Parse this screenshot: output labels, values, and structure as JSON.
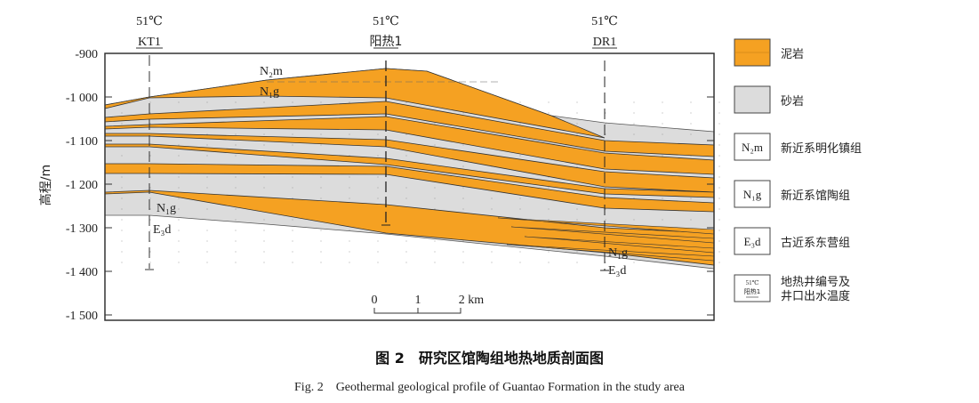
{
  "y_axis": {
    "label": "高程/m",
    "ticks": [
      "-900",
      "-1 000",
      "-1 100",
      "-1 200",
      "-1 300",
      "-1 400",
      "-1 500"
    ]
  },
  "wells": [
    {
      "name": "KT1",
      "temperature": "51℃"
    },
    {
      "name": "阳热1",
      "temperature": "51℃"
    },
    {
      "name": "DR1",
      "temperature": "51℃"
    }
  ],
  "formation_labels": {
    "n2m": "N₂m",
    "n1g_top": "N₁g",
    "n1g_left": "N₁g",
    "e3d_left": "E₃d",
    "n1g_right": "N₁g",
    "e3d_right": "E₃d"
  },
  "scale_bar": {
    "ticks": [
      "0",
      "1",
      "2 km"
    ]
  },
  "legend": [
    {
      "key": "mudstone",
      "label": "泥岩",
      "color": "#f5a122"
    },
    {
      "key": "sandstone",
      "label": "砂岩",
      "color": "#dcdcdc"
    },
    {
      "key": "n2m",
      "symbol": "N₂m",
      "label": "新近系明化镇组"
    },
    {
      "key": "n1g",
      "symbol": "N₁g",
      "label": "新近系馆陶组"
    },
    {
      "key": "e3d",
      "symbol": "E₃d",
      "label": "古近系东营组"
    },
    {
      "key": "well",
      "symbol_temp": "51℃",
      "symbol_name": "阳热1",
      "label_line1": "地热井编号及",
      "label_line2": "井口出水温度"
    }
  ],
  "caption": {
    "zh": "图 2　研究区馆陶组地热地质剖面图",
    "en": "Fig. 2　Geothermal geological profile of Guantao Formation in the study area"
  }
}
